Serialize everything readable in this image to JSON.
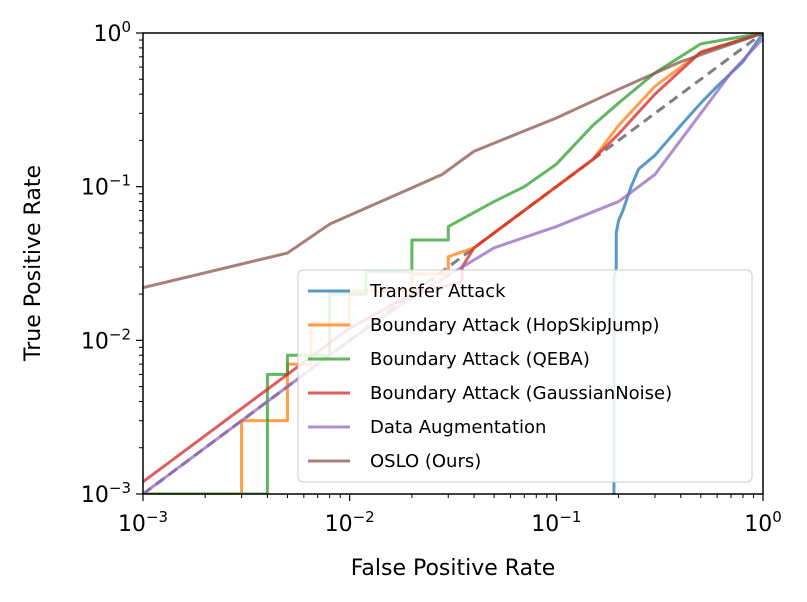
{
  "chart_data": {
    "type": "line",
    "title": "",
    "xlabel": "False Positive Rate",
    "ylabel": "True Positive Rate",
    "xscale": "log",
    "yscale": "log",
    "xlim": [
      0.001,
      1
    ],
    "ylim": [
      0.001,
      1
    ],
    "x_ticks": [
      {
        "value": 0.001,
        "base": "10",
        "exp": "−3"
      },
      {
        "value": 0.01,
        "base": "10",
        "exp": "−2"
      },
      {
        "value": 0.1,
        "base": "10",
        "exp": "−1"
      },
      {
        "value": 1,
        "base": "10",
        "exp": "0"
      }
    ],
    "y_ticks": [
      {
        "value": 0.001,
        "base": "10",
        "exp": "−3"
      },
      {
        "value": 0.01,
        "base": "10",
        "exp": "−2"
      },
      {
        "value": 0.1,
        "base": "10",
        "exp": "−1"
      },
      {
        "value": 1,
        "base": "10",
        "exp": "0"
      }
    ],
    "legend_position": "lower-right",
    "reference_line": {
      "name": "random-chance",
      "style": "dashed",
      "color": "#808080",
      "points": [
        [
          0.001,
          0.001
        ],
        [
          1,
          1
        ]
      ]
    },
    "series": [
      {
        "name": "Transfer Attack",
        "color": "#1f77b4",
        "points": [
          [
            0.19,
            0.001
          ],
          [
            0.19,
            0.0015
          ],
          [
            0.19,
            0.025
          ],
          [
            0.195,
            0.03
          ],
          [
            0.195,
            0.05
          ],
          [
            0.2,
            0.06
          ],
          [
            0.21,
            0.07
          ],
          [
            0.23,
            0.1
          ],
          [
            0.25,
            0.13
          ],
          [
            0.3,
            0.16
          ],
          [
            0.4,
            0.25
          ],
          [
            0.5,
            0.35
          ],
          [
            0.6,
            0.45
          ],
          [
            0.8,
            0.65
          ],
          [
            1,
            1
          ]
        ]
      },
      {
        "name": "Boundary Attack (HopSkipJump)",
        "color": "#ff7f0e",
        "points": [
          [
            0.001,
            0.001
          ],
          [
            0.003,
            0.001
          ],
          [
            0.003,
            0.003
          ],
          [
            0.005,
            0.003
          ],
          [
            0.005,
            0.007
          ],
          [
            0.0065,
            0.007
          ],
          [
            0.0065,
            0.013
          ],
          [
            0.01,
            0.013
          ],
          [
            0.01,
            0.021
          ],
          [
            0.02,
            0.021
          ],
          [
            0.02,
            0.027
          ],
          [
            0.03,
            0.027
          ],
          [
            0.03,
            0.035
          ],
          [
            0.04,
            0.04
          ],
          [
            0.06,
            0.06
          ],
          [
            0.08,
            0.08
          ],
          [
            0.1,
            0.1
          ],
          [
            0.15,
            0.15
          ],
          [
            0.2,
            0.25
          ],
          [
            0.3,
            0.45
          ],
          [
            0.5,
            0.75
          ],
          [
            1,
            1
          ]
        ]
      },
      {
        "name": "Boundary Attack (QEBA)",
        "color": "#2ca02c",
        "points": [
          [
            0.001,
            0.001
          ],
          [
            0.004,
            0.001
          ],
          [
            0.004,
            0.006
          ],
          [
            0.005,
            0.006
          ],
          [
            0.005,
            0.008
          ],
          [
            0.008,
            0.008
          ],
          [
            0.008,
            0.02
          ],
          [
            0.012,
            0.02
          ],
          [
            0.012,
            0.028
          ],
          [
            0.02,
            0.028
          ],
          [
            0.02,
            0.045
          ],
          [
            0.03,
            0.045
          ],
          [
            0.03,
            0.055
          ],
          [
            0.05,
            0.08
          ],
          [
            0.07,
            0.1
          ],
          [
            0.1,
            0.14
          ],
          [
            0.15,
            0.25
          ],
          [
            0.2,
            0.35
          ],
          [
            0.3,
            0.55
          ],
          [
            0.5,
            0.85
          ],
          [
            1,
            1
          ]
        ]
      },
      {
        "name": "Boundary Attack (GaussianNoise)",
        "color": "#d62728",
        "points": [
          [
            0.001,
            0.0012
          ],
          [
            0.002,
            0.0024
          ],
          [
            0.005,
            0.006
          ],
          [
            0.01,
            0.012
          ],
          [
            0.02,
            0.02
          ],
          [
            0.035,
            0.024
          ],
          [
            0.035,
            0.03
          ],
          [
            0.04,
            0.04
          ],
          [
            0.06,
            0.06
          ],
          [
            0.08,
            0.08
          ],
          [
            0.1,
            0.1
          ],
          [
            0.15,
            0.15
          ],
          [
            0.2,
            0.22
          ],
          [
            0.3,
            0.4
          ],
          [
            0.5,
            0.75
          ],
          [
            1,
            1
          ]
        ]
      },
      {
        "name": "Data Augmentation",
        "color": "#9467bd",
        "points": [
          [
            0.001,
            0.001
          ],
          [
            0.005,
            0.005
          ],
          [
            0.01,
            0.01
          ],
          [
            0.02,
            0.019
          ],
          [
            0.05,
            0.04
          ],
          [
            0.1,
            0.055
          ],
          [
            0.2,
            0.08
          ],
          [
            0.3,
            0.12
          ],
          [
            0.5,
            0.3
          ],
          [
            0.7,
            0.55
          ],
          [
            1,
            0.92
          ]
        ]
      },
      {
        "name": "OSLO (Ours)",
        "color": "#8c564b",
        "points": [
          [
            0.001,
            0.022
          ],
          [
            0.005,
            0.037
          ],
          [
            0.008,
            0.057
          ],
          [
            0.028,
            0.12
          ],
          [
            0.04,
            0.17
          ],
          [
            0.1,
            0.28
          ],
          [
            0.2,
            0.43
          ],
          [
            0.4,
            0.65
          ],
          [
            1,
            1
          ]
        ]
      }
    ]
  }
}
